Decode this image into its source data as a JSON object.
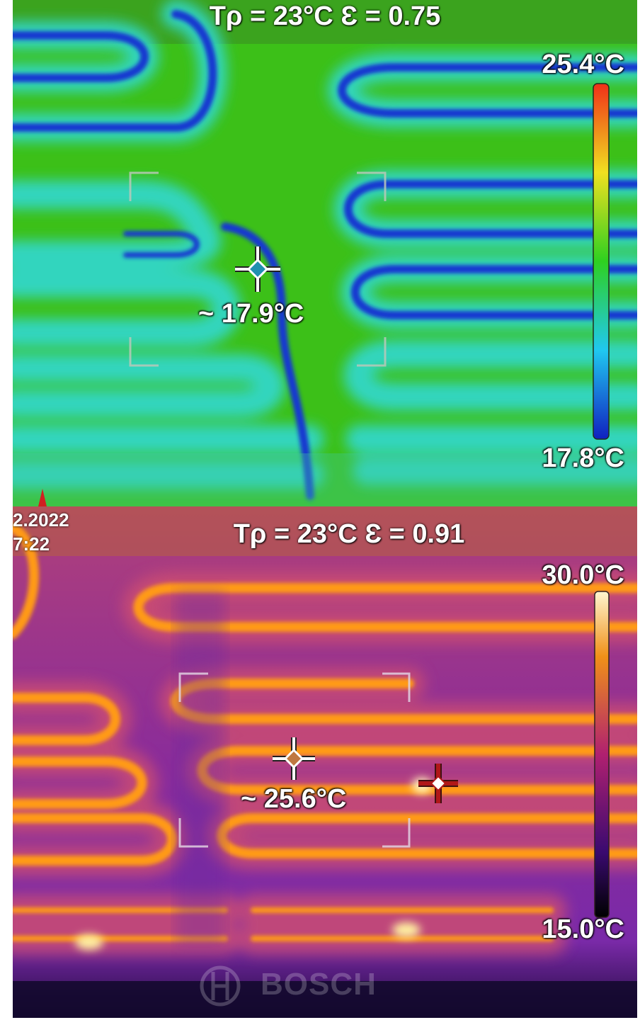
{
  "top_panel": {
    "header": "Tρ = 23°C  Ɛ = 0.75",
    "scale_max": "25.4°C",
    "scale_min": "17.8°C",
    "spot_reading": "~ 17.9°C",
    "palette": [
      "#1020c0",
      "#20c8f0",
      "#2ed020",
      "#f0e020",
      "#f03018"
    ]
  },
  "bottom_panel": {
    "header": "Tρ = 23°C  Ɛ = 0.91",
    "scale_max": "30.0°C",
    "scale_min": "15.0°C",
    "spot_reading": "~ 25.6°C",
    "date_fragment": "2.2022",
    "time_fragment": "7:22",
    "brand": "BOSCH",
    "palette": [
      "#000000",
      "#3a0a70",
      "#b02080",
      "#f07a10",
      "#fff6d0"
    ]
  }
}
